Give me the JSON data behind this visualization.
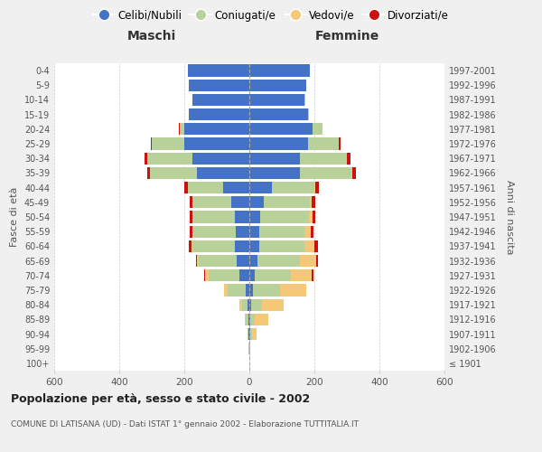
{
  "age_groups": [
    "100+",
    "95-99",
    "90-94",
    "85-89",
    "80-84",
    "75-79",
    "70-74",
    "65-69",
    "60-64",
    "55-59",
    "50-54",
    "45-49",
    "40-44",
    "35-39",
    "30-34",
    "25-29",
    "20-24",
    "15-19",
    "10-14",
    "5-9",
    "0-4"
  ],
  "birth_years": [
    "≤ 1901",
    "1902-1906",
    "1907-1911",
    "1912-1916",
    "1917-1921",
    "1922-1926",
    "1927-1931",
    "1932-1936",
    "1937-1941",
    "1942-1946",
    "1947-1951",
    "1952-1956",
    "1957-1961",
    "1962-1966",
    "1967-1971",
    "1972-1976",
    "1977-1981",
    "1982-1986",
    "1987-1991",
    "1992-1996",
    "1997-2001"
  ],
  "maschi": {
    "celibi": [
      0,
      1,
      2,
      3,
      5,
      12,
      30,
      40,
      45,
      42,
      45,
      55,
      80,
      160,
      175,
      200,
      200,
      185,
      175,
      185,
      190
    ],
    "coniugati": [
      0,
      1,
      3,
      8,
      18,
      55,
      95,
      115,
      130,
      130,
      130,
      120,
      110,
      145,
      140,
      100,
      15,
      2,
      1,
      0,
      0
    ],
    "vedovi": [
      0,
      0,
      1,
      3,
      8,
      12,
      10,
      5,
      3,
      2,
      1,
      1,
      0,
      0,
      0,
      0,
      0,
      0,
      0,
      0,
      0
    ],
    "divorziati": [
      0,
      0,
      0,
      0,
      0,
      0,
      5,
      5,
      8,
      8,
      8,
      8,
      10,
      8,
      8,
      2,
      1,
      0,
      0,
      0,
      0
    ]
  },
  "femmine": {
    "nubili": [
      0,
      1,
      2,
      3,
      5,
      10,
      18,
      25,
      30,
      30,
      32,
      45,
      70,
      155,
      155,
      180,
      195,
      180,
      170,
      175,
      185
    ],
    "coniugate": [
      0,
      1,
      5,
      15,
      35,
      85,
      110,
      130,
      140,
      140,
      150,
      140,
      130,
      160,
      145,
      95,
      30,
      3,
      1,
      0,
      0
    ],
    "vedove": [
      0,
      2,
      15,
      40,
      65,
      80,
      65,
      50,
      30,
      18,
      12,
      8,
      2,
      1,
      1,
      1,
      0,
      0,
      0,
      0,
      0
    ],
    "divorziate": [
      0,
      0,
      0,
      0,
      0,
      1,
      5,
      5,
      10,
      10,
      10,
      10,
      12,
      12,
      10,
      5,
      1,
      0,
      0,
      0,
      0
    ]
  },
  "colors": {
    "celibi": "#4472c4",
    "coniugati": "#b8d099",
    "vedovi": "#f5c878",
    "divorziati": "#cc1111"
  },
  "title": "Popolazione per età, sesso e stato civile - 2002",
  "subtitle": "COMUNE DI LATISANA (UD) - Dati ISTAT 1° gennaio 2002 - Elaborazione TUTTITALIA.IT",
  "xlabel_left": "Maschi",
  "xlabel_right": "Femmine",
  "ylabel_left": "Fasce di età",
  "ylabel_right": "Anni di nascita",
  "xlim": 600,
  "legend_labels": [
    "Celibi/Nubili",
    "Coniugati/e",
    "Vedovi/e",
    "Divorziati/e"
  ],
  "background_color": "#f0f0f0",
  "plot_bg": "#ffffff"
}
